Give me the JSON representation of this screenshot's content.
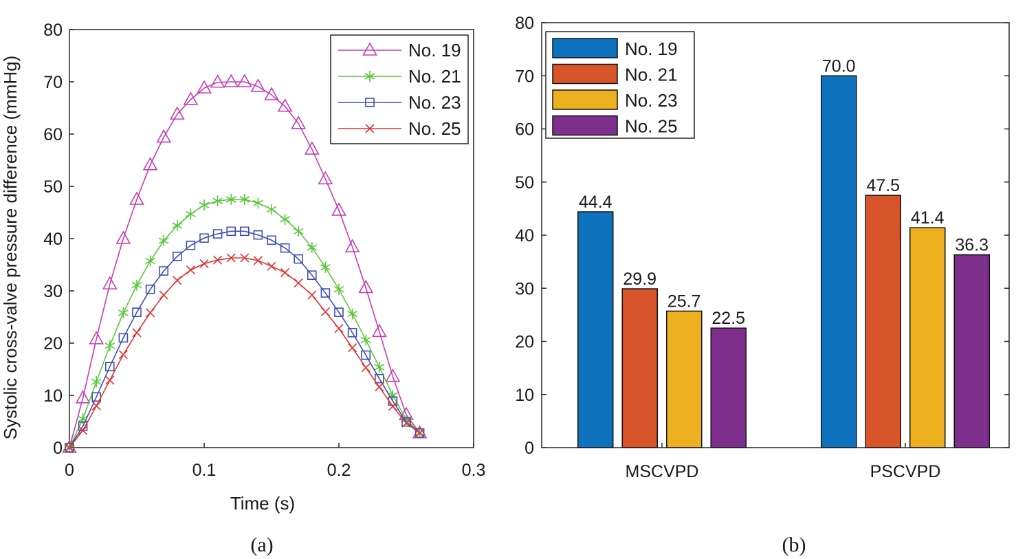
{
  "chart_data": [
    {
      "type": "line",
      "caption": "(a)",
      "xlabel": "Time (s)",
      "ylabel": "Systolic cross-valve pressure difference (mmHg)",
      "xlim": [
        0,
        0.3
      ],
      "ylim": [
        0,
        80
      ],
      "xticks": [
        "0",
        "0.1",
        "0.2",
        "0.3"
      ],
      "yticks": [
        "0",
        "10",
        "20",
        "30",
        "40",
        "50",
        "60",
        "70",
        "80"
      ],
      "legend_position": "top-right",
      "x": [
        0,
        0.01,
        0.02,
        0.03,
        0.04,
        0.05,
        0.06,
        0.07,
        0.08,
        0.09,
        0.1,
        0.11,
        0.12,
        0.13,
        0.14,
        0.15,
        0.16,
        0.17,
        0.18,
        0.19,
        0.2,
        0.21,
        0.22,
        0.23,
        0.24,
        0.25,
        0.26
      ],
      "series": [
        {
          "name": "No. 19",
          "color": "#c83cb4",
          "marker": "triangle",
          "values": [
            0,
            9.5,
            20.8,
            31.3,
            40,
            47.5,
            54.1,
            59.4,
            63.8,
            66.6,
            68.8,
            69.9,
            70.0,
            70.0,
            69.1,
            67.5,
            65.3,
            62.0,
            57.1,
            51.4,
            45.4,
            38.4,
            30.6,
            22.2,
            13.6,
            6.3,
            2.8
          ]
        },
        {
          "name": "No. 21",
          "color": "#5ac83c",
          "marker": "asterisk",
          "values": [
            0,
            5.5,
            12.6,
            19.5,
            25.8,
            31.1,
            35.7,
            39.6,
            42.5,
            44.7,
            46.4,
            47.2,
            47.5,
            47.5,
            46.8,
            45.6,
            43.7,
            41.4,
            38.3,
            34.5,
            30.3,
            25.6,
            20.6,
            15.4,
            10.0,
            5.4,
            2.8
          ]
        },
        {
          "name": "No. 23",
          "color": "#3c50b4",
          "marker": "square",
          "values": [
            0,
            4.1,
            9.7,
            15.5,
            21.0,
            25.9,
            30.3,
            33.8,
            36.6,
            38.7,
            40.1,
            40.9,
            41.4,
            41.4,
            40.7,
            39.7,
            38.2,
            36.1,
            33.0,
            29.6,
            25.9,
            22.0,
            17.7,
            13.2,
            8.9,
            4.9,
            2.8
          ]
        },
        {
          "name": "No. 25",
          "color": "#e13232",
          "marker": "x",
          "values": [
            0,
            3.3,
            8.0,
            12.9,
            17.8,
            22.0,
            25.8,
            29.2,
            32.0,
            34.0,
            35.2,
            35.9,
            36.3,
            36.3,
            35.8,
            34.7,
            33.5,
            31.5,
            29.2,
            26.0,
            22.8,
            19.1,
            15.3,
            11.6,
            7.9,
            4.7,
            2.8
          ]
        }
      ]
    },
    {
      "type": "bar",
      "caption": "(b)",
      "categories": [
        "MSCVPD",
        "PSCVPD"
      ],
      "ylim": [
        0,
        80
      ],
      "yticks": [
        "0",
        "10",
        "20",
        "30",
        "40",
        "50",
        "60",
        "70",
        "80"
      ],
      "legend_position": "top-left",
      "series": [
        {
          "name": "No. 19",
          "color": "#0e72bd",
          "values": [
            44.4,
            70.0
          ],
          "labels": [
            "44.4",
            "70.0"
          ]
        },
        {
          "name": "No. 21",
          "color": "#d8542a",
          "values": [
            29.9,
            47.5
          ],
          "labels": [
            "29.9",
            "47.5"
          ]
        },
        {
          "name": "No. 23",
          "color": "#edb120",
          "values": [
            25.7,
            41.4
          ],
          "labels": [
            "25.7",
            "41.4"
          ]
        },
        {
          "name": "No. 25",
          "color": "#7e2f8e",
          "values": [
            22.5,
            36.3
          ],
          "labels": [
            "22.5",
            "36.3"
          ]
        }
      ]
    }
  ]
}
